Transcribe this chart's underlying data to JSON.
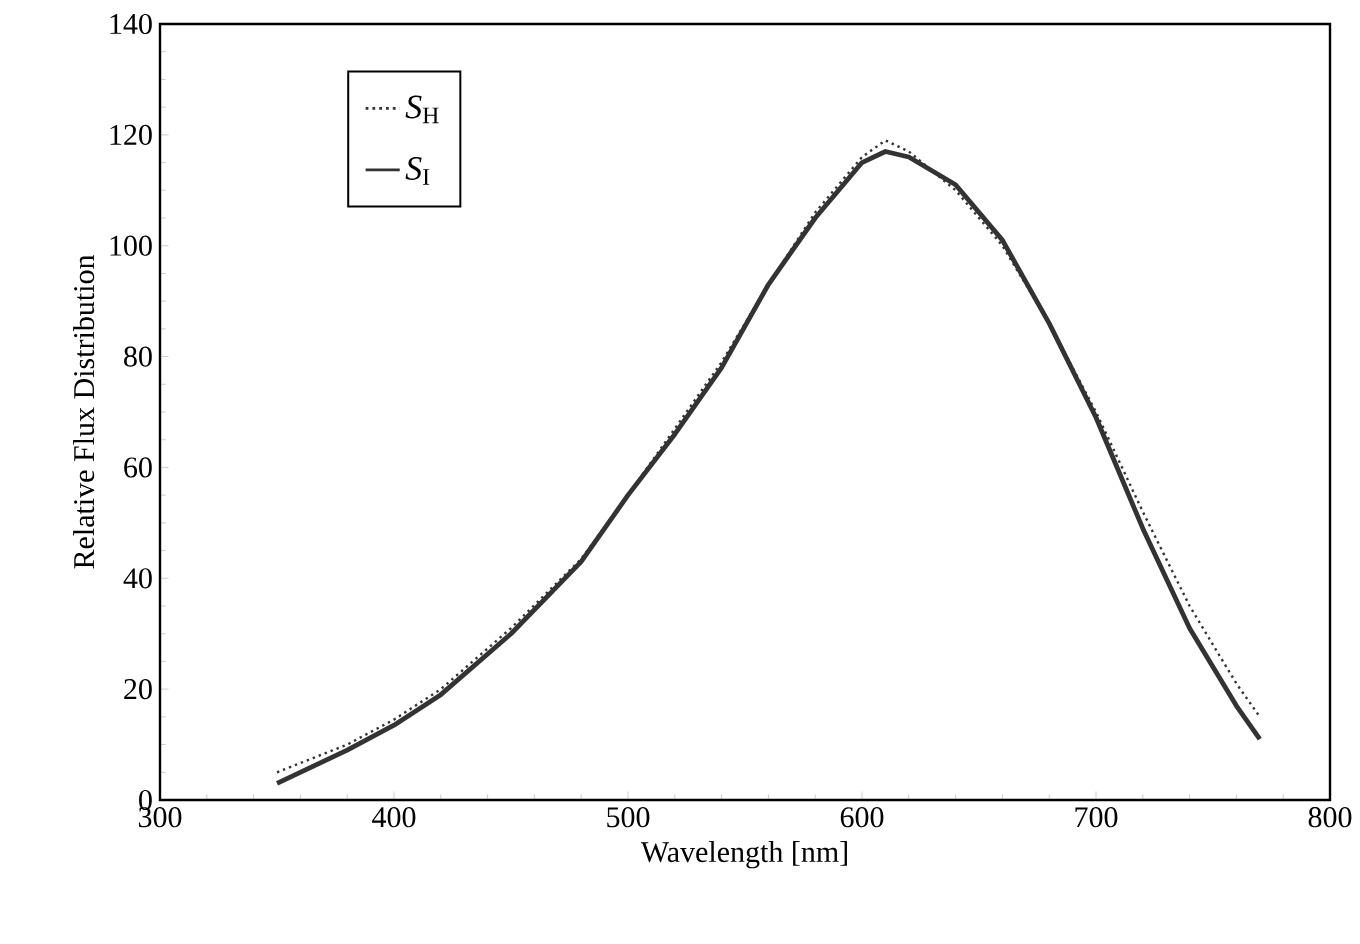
{
  "chart_data": {
    "type": "line",
    "xlabel": "Wavelength [nm]",
    "ylabel": "Relative Flux Distribution",
    "xlim": [
      300,
      800
    ],
    "xticks": [
      300,
      400,
      500,
      600,
      700,
      800
    ],
    "ylim": [
      0,
      140
    ],
    "yticks": [
      0,
      20,
      40,
      60,
      80,
      100,
      120,
      140
    ],
    "legend": "top left",
    "grid": false,
    "marker": "none",
    "series": [
      {
        "name": "*S*$_{H}$",
        "color": "#333333",
        "line_style": "dotted",
        "x": [
          350,
          380,
          400,
          420,
          450,
          480,
          500,
          520,
          540,
          560,
          580,
          600,
          610,
          620,
          640,
          660,
          680,
          700,
          720,
          740,
          760,
          770
        ],
        "values": [
          5,
          10,
          14.5,
          20,
          31,
          43.5,
          55,
          67,
          79,
          93,
          106,
          116,
          119,
          117,
          110,
          100,
          86,
          70,
          52,
          35,
          21,
          15
        ]
      },
      {
        "name": "*S*$_{I}$",
        "color": "#333333",
        "line_style": "solid",
        "x": [
          350,
          380,
          400,
          420,
          450,
          480,
          500,
          520,
          540,
          560,
          580,
          600,
          610,
          620,
          640,
          660,
          680,
          700,
          720,
          740,
          760,
          770
        ],
        "values": [
          3,
          9,
          13.5,
          19,
          30,
          43,
          55,
          66,
          78,
          93,
          105,
          115,
          117,
          116,
          111,
          101,
          86,
          69,
          49,
          31,
          17,
          11
        ]
      }
    ]
  }
}
